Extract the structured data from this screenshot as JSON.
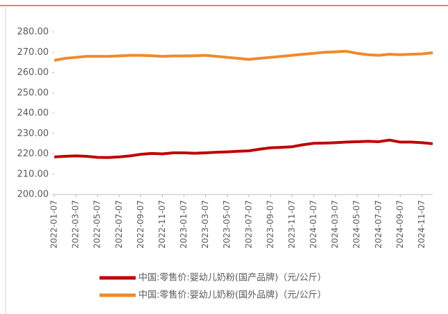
{
  "chart_data": {
    "type": "line",
    "categories": [
      "2022-01-07",
      null,
      "2022-03-07",
      null,
      "2022-05-07",
      null,
      "2022-07-07",
      null,
      "2022-09-07",
      null,
      "2022-11-07",
      null,
      "2023-01-07",
      null,
      "2023-03-07",
      null,
      "2023-05-07",
      null,
      "2023-07-07",
      null,
      "2023-09-07",
      null,
      "2023-11-07",
      null,
      "2024-01-07",
      null,
      "2024-03-07",
      null,
      "2024-05-07",
      null,
      "2024-07-07",
      null,
      "2024-09-07",
      null,
      "2024-11-07",
      null
    ],
    "series": [
      {
        "name": "中国:零售价:婴幼儿奶粉(国产品牌)（元/公斤）",
        "color": "#c00000",
        "values": [
          218.5,
          218.8,
          219,
          218.8,
          218.3,
          218.2,
          218.5,
          219,
          219.8,
          220.2,
          220,
          220.5,
          220.5,
          220.3,
          220.5,
          220.8,
          221,
          221.3,
          221.5,
          222.3,
          223,
          223.2,
          223.5,
          224.5,
          225.2,
          225.3,
          225.5,
          225.8,
          226,
          226.2,
          226,
          226.8,
          225.8,
          225.8,
          225.5,
          225
        ]
      },
      {
        "name": "中国:零售价:婴幼儿奶粉(国外品牌)（元/公斤）",
        "color": "#f08a2c",
        "values": [
          266,
          267,
          267.5,
          268,
          268,
          268,
          268.2,
          268.5,
          268.5,
          268.3,
          268,
          268.2,
          268.2,
          268.3,
          268.5,
          268,
          267.5,
          267,
          266.5,
          267,
          267.5,
          268,
          268.5,
          269,
          269.5,
          270,
          270.2,
          270.5,
          269.5,
          268.8,
          268.5,
          269,
          268.8,
          269,
          269.2,
          269.8
        ]
      }
    ],
    "ylim": [
      200,
      280
    ],
    "yticks": [
      {
        "value": 200,
        "label": "200.00"
      },
      {
        "value": 210,
        "label": "210.00"
      },
      {
        "value": 220,
        "label": "220.00"
      },
      {
        "value": 230,
        "label": "230.00"
      },
      {
        "value": 240,
        "label": "240.00"
      },
      {
        "value": 250,
        "label": "250.00"
      },
      {
        "value": 260,
        "label": "260.00"
      },
      {
        "value": 270,
        "label": "270.00"
      },
      {
        "value": 280,
        "label": "280.00"
      }
    ],
    "grid": false
  }
}
